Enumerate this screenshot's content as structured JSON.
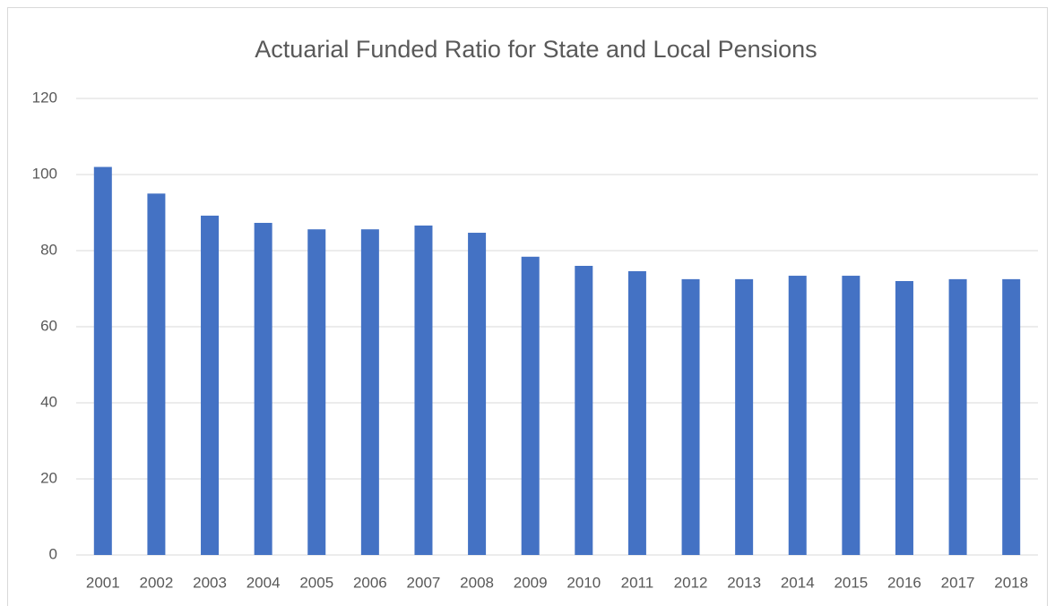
{
  "chart_data": {
    "type": "bar",
    "title": "Actuarial Funded Ratio for State and Local Pensions",
    "categories": [
      "2001",
      "2002",
      "2003",
      "2004",
      "2005",
      "2006",
      "2007",
      "2008",
      "2009",
      "2010",
      "2011",
      "2012",
      "2013",
      "2014",
      "2015",
      "2016",
      "2017",
      "2018"
    ],
    "values": [
      102,
      95,
      89.2,
      87.3,
      85.6,
      85.6,
      86.6,
      84.7,
      78.4,
      76,
      74.6,
      72.5,
      72.5,
      73.4,
      73.4,
      72,
      72.5,
      72.5
    ],
    "color": "#4472c4",
    "ylim": [
      0,
      120
    ],
    "yticks": [
      0,
      20,
      40,
      60,
      80,
      100,
      120
    ],
    "grid": true
  }
}
